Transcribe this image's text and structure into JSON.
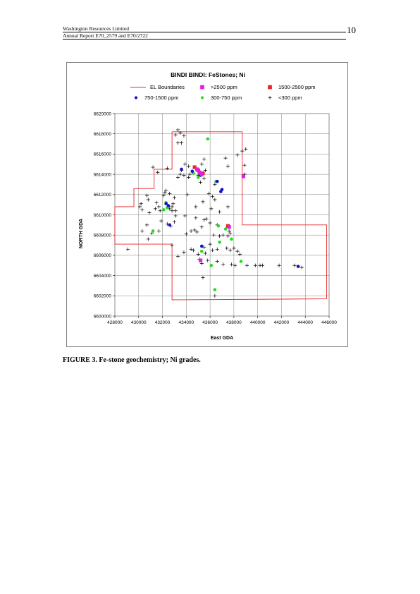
{
  "header": {
    "company": "Washington Resources Limited",
    "report": "Annual Report E70_2579 and E70/2722",
    "page_number": "10"
  },
  "caption": "FIGURE 3.  Fe-stone geochemistry; Ni grades.",
  "colors": {
    "boundary": "#e8242a",
    "gt2500": "#e020e0",
    "r1500_2500": "#e8242a",
    "r750_1500": "#1010c8",
    "r300_750": "#22dd22",
    "lt300": "#000000"
  },
  "chart_data": {
    "type": "scatter",
    "title": "BINDI BINDI: FeStones;  Ni",
    "xlabel": "East GDA",
    "ylabel": "NORTH GDA",
    "xlim": [
      428000,
      446000
    ],
    "ylim": [
      6600000,
      6620000
    ],
    "xticks": [
      "428000",
      "430000",
      "432000",
      "434000",
      "436000",
      "438000",
      "440000",
      "442000",
      "444000",
      "446000"
    ],
    "yticks": [
      "6600000",
      "6602000",
      "6604000",
      "6606000",
      "6608000",
      "6610000",
      "6612000",
      "6614000",
      "6616000",
      "6618000",
      "6620000"
    ],
    "grid": true,
    "legend_position": "top",
    "legend": [
      {
        "label": "EL Boundaries",
        "marker": "line"
      },
      {
        "label": ">2500 ppm",
        "marker": "square"
      },
      {
        "label": "1500-2500 ppm",
        "marker": "square"
      },
      {
        "label": "750-1500 ppm",
        "marker": "circle"
      },
      {
        "label": "300-750 ppm",
        "marker": "circle"
      },
      {
        "label": "<300 ppm",
        "marker": "plus"
      }
    ],
    "boundary": [
      [
        432800,
        6618200
      ],
      [
        438700,
        6618200
      ],
      [
        438700,
        6609000
      ],
      [
        445800,
        6609000
      ],
      [
        445800,
        6601700
      ],
      [
        432800,
        6601600
      ],
      [
        432800,
        6607100
      ],
      [
        428000,
        6607100
      ],
      [
        428000,
        6610800
      ],
      [
        429600,
        6610800
      ],
      [
        429600,
        6612600
      ],
      [
        431300,
        6612600
      ],
      [
        431300,
        6614500
      ],
      [
        432800,
        6614500
      ],
      [
        432800,
        6618200
      ]
    ],
    "series": [
      {
        "name": ">2500 ppm",
        "points": [
          [
            434900,
            6614500
          ],
          [
            435100,
            6614200
          ],
          [
            435300,
            6614000
          ],
          [
            438800,
            6613800
          ],
          [
            435200,
            6605500
          ],
          [
            437600,
            6608800
          ]
        ]
      },
      {
        "name": "1500-2500 ppm",
        "points": [
          [
            434700,
            6614700
          ],
          [
            435000,
            6614400
          ],
          [
            437500,
            6608900
          ],
          [
            435400,
            6614100
          ]
        ]
      },
      {
        "name": "750-1500 ppm",
        "points": [
          [
            433600,
            6614500
          ],
          [
            434500,
            6614300
          ],
          [
            435200,
            6613900
          ],
          [
            436600,
            6613300
          ],
          [
            437000,
            6612500
          ],
          [
            436900,
            6612300
          ],
          [
            432300,
            6611100
          ],
          [
            432500,
            6610900
          ],
          [
            432600,
            6609000
          ],
          [
            435300,
            6606900
          ],
          [
            443400,
            6604900
          ]
        ]
      },
      {
        "name": "300-750 ppm",
        "points": [
          [
            435800,
            6617500
          ],
          [
            434600,
            6614100
          ],
          [
            435000,
            6613700
          ],
          [
            432100,
            6610500
          ],
          [
            432400,
            6610700
          ],
          [
            432300,
            6611200
          ],
          [
            431200,
            6608400
          ],
          [
            436700,
            6608900
          ],
          [
            437300,
            6608600
          ],
          [
            437800,
            6607600
          ],
          [
            436800,
            6607300
          ],
          [
            436100,
            6605000
          ],
          [
            438600,
            6605400
          ],
          [
            436400,
            6602600
          ],
          [
            436500,
            6613300
          ],
          [
            435300,
            6606400
          ]
        ]
      },
      {
        "name": "<300 ppm",
        "points": [
          [
            433100,
            6617900
          ],
          [
            433300,
            6618400
          ],
          [
            433500,
            6618100
          ],
          [
            433800,
            6617800
          ],
          [
            433600,
            6617100
          ],
          [
            433300,
            6617100
          ],
          [
            433900,
            6615000
          ],
          [
            433600,
            6614400
          ],
          [
            433500,
            6614000
          ],
          [
            433300,
            6613700
          ],
          [
            433800,
            6613900
          ],
          [
            434200,
            6614800
          ],
          [
            435500,
            6615500
          ],
          [
            435300,
            6615000
          ],
          [
            435600,
            6614400
          ],
          [
            435900,
            6612100
          ],
          [
            436200,
            6611800
          ],
          [
            436100,
            6610600
          ],
          [
            436400,
            6611500
          ],
          [
            435400,
            6611300
          ],
          [
            435700,
            6609600
          ],
          [
            435500,
            6609500
          ],
          [
            436600,
            6609000
          ],
          [
            435300,
            6608800
          ],
          [
            431200,
            6614700
          ],
          [
            431600,
            6614200
          ],
          [
            432400,
            6614600
          ],
          [
            432300,
            6612400
          ],
          [
            432600,
            6612100
          ],
          [
            432100,
            6611900
          ],
          [
            430700,
            6611900
          ],
          [
            430800,
            6611500
          ],
          [
            431500,
            6611200
          ],
          [
            431700,
            6610800
          ],
          [
            431400,
            6610600
          ],
          [
            431800,
            6610400
          ],
          [
            432800,
            6610400
          ],
          [
            432900,
            6611100
          ],
          [
            433000,
            6611700
          ],
          [
            432800,
            6610800
          ],
          [
            432600,
            6610600
          ],
          [
            433100,
            6609900
          ],
          [
            433000,
            6609300
          ],
          [
            432400,
            6609100
          ],
          [
            431900,
            6609400
          ],
          [
            431700,
            6608400
          ],
          [
            431100,
            6608200
          ],
          [
            430800,
            6607600
          ],
          [
            430300,
            6610500
          ],
          [
            430100,
            6610800
          ],
          [
            430200,
            6611100
          ],
          [
            430700,
            6609000
          ],
          [
            430900,
            6610200
          ],
          [
            430300,
            6608400
          ],
          [
            429100,
            6606600
          ],
          [
            432800,
            6607000
          ],
          [
            433300,
            6605900
          ],
          [
            433800,
            6606300
          ],
          [
            434000,
            6608100
          ],
          [
            434400,
            6608400
          ],
          [
            434700,
            6608500
          ],
          [
            434900,
            6608300
          ],
          [
            434400,
            6606600
          ],
          [
            434600,
            6606500
          ],
          [
            435000,
            6606100
          ],
          [
            435100,
            6605600
          ],
          [
            435500,
            6606800
          ],
          [
            435600,
            6606200
          ],
          [
            435800,
            6605500
          ],
          [
            436200,
            6606500
          ],
          [
            436000,
            6607100
          ],
          [
            436600,
            6606600
          ],
          [
            436800,
            6607900
          ],
          [
            437100,
            6608000
          ],
          [
            437500,
            6607900
          ],
          [
            437700,
            6608200
          ],
          [
            437400,
            6606700
          ],
          [
            437700,
            6606500
          ],
          [
            438000,
            6606700
          ],
          [
            438300,
            6606400
          ],
          [
            438500,
            6606100
          ],
          [
            437100,
            6605100
          ],
          [
            437800,
            6605100
          ],
          [
            438100,
            6605000
          ],
          [
            439100,
            6605000
          ],
          [
            439800,
            6605000
          ],
          [
            440200,
            6605000
          ],
          [
            440400,
            6605000
          ],
          [
            441800,
            6605000
          ],
          [
            443100,
            6605000
          ],
          [
            443700,
            6604800
          ],
          [
            435400,
            6603800
          ],
          [
            436400,
            6602000
          ],
          [
            435300,
            6605200
          ],
          [
            436600,
            6605400
          ],
          [
            436800,
            6610300
          ],
          [
            437500,
            6610800
          ],
          [
            437300,
            6615600
          ],
          [
            437500,
            6614800
          ],
          [
            438300,
            6615900
          ],
          [
            438700,
            6616300
          ],
          [
            439000,
            6616500
          ],
          [
            438900,
            6614900
          ],
          [
            438900,
            6614000
          ],
          [
            435000,
            6613900
          ],
          [
            435500,
            6613600
          ],
          [
            435200,
            6613200
          ],
          [
            436400,
            6613000
          ],
          [
            434100,
            6612000
          ],
          [
            434800,
            6610800
          ],
          [
            433900,
            6609900
          ],
          [
            433100,
            6610400
          ],
          [
            434300,
            6614000
          ],
          [
            434200,
            6613700
          ],
          [
            432700,
            6608900
          ],
          [
            436300,
            6608000
          ],
          [
            437600,
            6608400
          ],
          [
            434800,
            6609700
          ],
          [
            436000,
            6609200
          ],
          [
            432200,
            6612200
          ]
        ]
      }
    ]
  }
}
